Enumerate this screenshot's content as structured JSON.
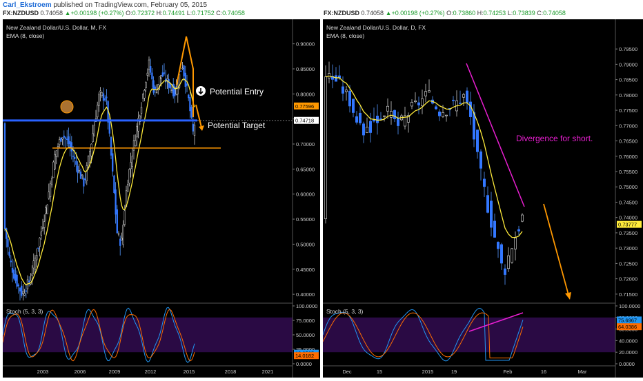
{
  "publisher": {
    "author": "Carl_Ekstroem",
    "text": "published on TradingView.com, February 05, 2015"
  },
  "left": {
    "header": {
      "symbol": "FX:NZDUSD",
      "last": "0.74058",
      "change": "+0.00198 (+0.27%)",
      "o": "0.72372",
      "h": "0.74491",
      "l": "0.71752",
      "c": "0.74058"
    },
    "title": "New Zealand Dollar/U.S. Dollar, M, FX",
    "ema_label": "EMA (8, close)",
    "stoch_label": "Stoch (5, 3, 3)",
    "price_ticks": [
      "0.90000",
      "0.85000",
      "0.80000",
      "0.75000",
      "0.70000",
      "0.65000",
      "0.60000",
      "0.55000",
      "0.50000",
      "0.45000",
      "0.40000"
    ],
    "price_tick_values": [
      0.9,
      0.85,
      0.8,
      0.75,
      0.7,
      0.65,
      0.6,
      0.55,
      0.5,
      0.45,
      0.4
    ],
    "price_range": [
      0.385,
      0.905
    ],
    "badges": [
      {
        "text": "0.77596",
        "value": 0.77596,
        "color": "#ff9800"
      },
      {
        "text": "0.74718",
        "value": 0.74718,
        "color": "#ffffff"
      }
    ],
    "stoch_ticks": [
      "100.0000",
      "75.0000",
      "50.0000",
      "25.0000",
      "0.0000"
    ],
    "stoch_tick_values": [
      100,
      75,
      50,
      25,
      0
    ],
    "stoch_badges": [
      {
        "text": "18.2565",
        "value": 18.2565,
        "color": "#2196f3"
      },
      {
        "text": "14.0182",
        "value": 14.0182,
        "color": "#ff6d00"
      }
    ],
    "x_ticks": [
      "2003",
      "2006",
      "2009",
      "2012",
      "2015",
      "2018",
      "2021"
    ],
    "annotations": {
      "entry": "Potential Entry",
      "target": "Potential Target"
    },
    "levels": {
      "blue_line": 0.747,
      "orange_line": 0.692
    }
  },
  "right": {
    "header": {
      "symbol": "FX:NZDUSD",
      "last": "0.74058",
      "change": "+0.00198 (+0.27%)",
      "o": "0.73860",
      "h": "0.74253",
      "l": "0.73839",
      "c": "0.74058"
    },
    "title": "New Zealand Dollar/U.S. Dollar, D, FX",
    "ema_label": "EMA (8, close)",
    "stoch_label": "Stoch (5, 3, 3)",
    "price_ticks": [
      "0.79500",
      "0.79000",
      "0.78500",
      "0.78000",
      "0.77500",
      "0.77000",
      "0.76500",
      "0.76000",
      "0.75500",
      "0.75000",
      "0.74500",
      "0.74000",
      "0.73500",
      "0.73000",
      "0.72500",
      "0.72000",
      "0.71500"
    ],
    "price_tick_values": [
      0.795,
      0.79,
      0.785,
      0.78,
      0.775,
      0.77,
      0.765,
      0.76,
      0.755,
      0.75,
      0.745,
      0.74,
      0.735,
      0.73,
      0.725,
      0.72,
      0.715
    ],
    "price_range": [
      0.7125,
      0.7975
    ],
    "badges": [
      {
        "text": "0.73777",
        "value": 0.73777,
        "color": "#ffeb3b"
      }
    ],
    "stoch_ticks": [
      "100.0000",
      "80.0000",
      "60.0000",
      "40.0000",
      "20.0000",
      "0.0000"
    ],
    "stoch_tick_values": [
      100,
      80,
      60,
      40,
      20,
      0
    ],
    "stoch_badges": [
      {
        "text": "75.6967",
        "value": 75.6967,
        "color": "#2196f3"
      },
      {
        "text": "64.0386",
        "value": 64.0386,
        "color": "#ff6d00"
      }
    ],
    "x_ticks": [
      "Dec",
      "15",
      "2015",
      "19",
      "Feb",
      "16",
      "Mar"
    ],
    "annotations": {
      "divergence": "Divergence for short."
    }
  }
}
